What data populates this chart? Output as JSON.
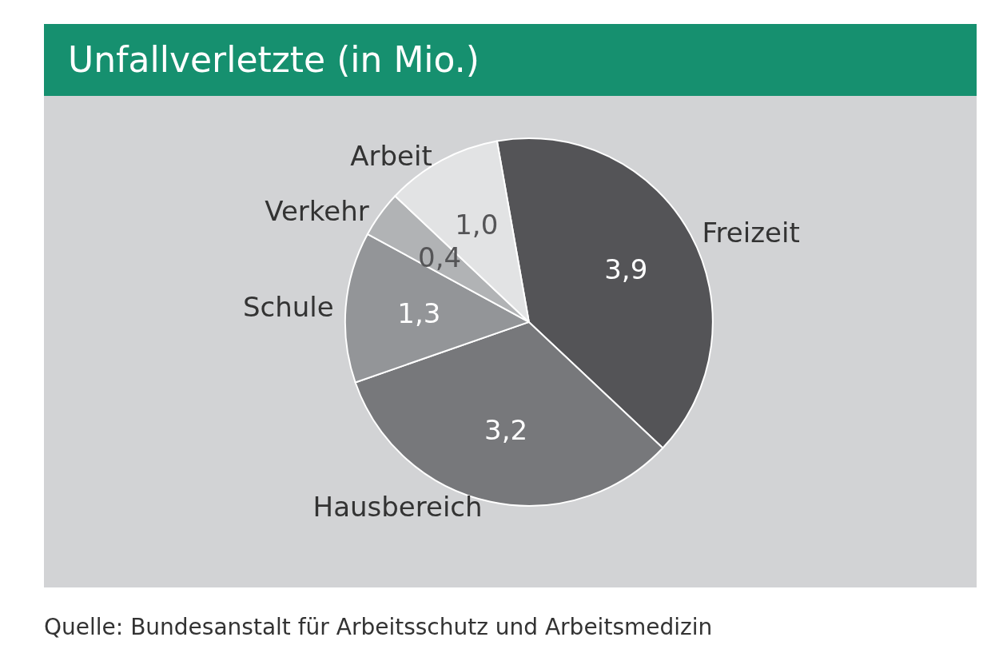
{
  "chart_data": {
    "type": "pie",
    "title": "Unfallverletzte (in Mio.)",
    "categories": [
      "Freizeit",
      "Hausbereich",
      "Schule",
      "Verkehr",
      "Arbeit"
    ],
    "values": [
      3.9,
      3.2,
      1.3,
      0.4,
      1.0
    ],
    "value_labels": [
      "3,9",
      "3,2",
      "1,3",
      "0,4",
      "1,0"
    ],
    "colors": [
      "#545457",
      "#77787b",
      "#939598",
      "#b1b3b5",
      "#e2e3e4"
    ],
    "annotations": [
      "Quelle: Bundesanstalt für Arbeitsschutz und Arbeitsmedizin"
    ]
  }
}
